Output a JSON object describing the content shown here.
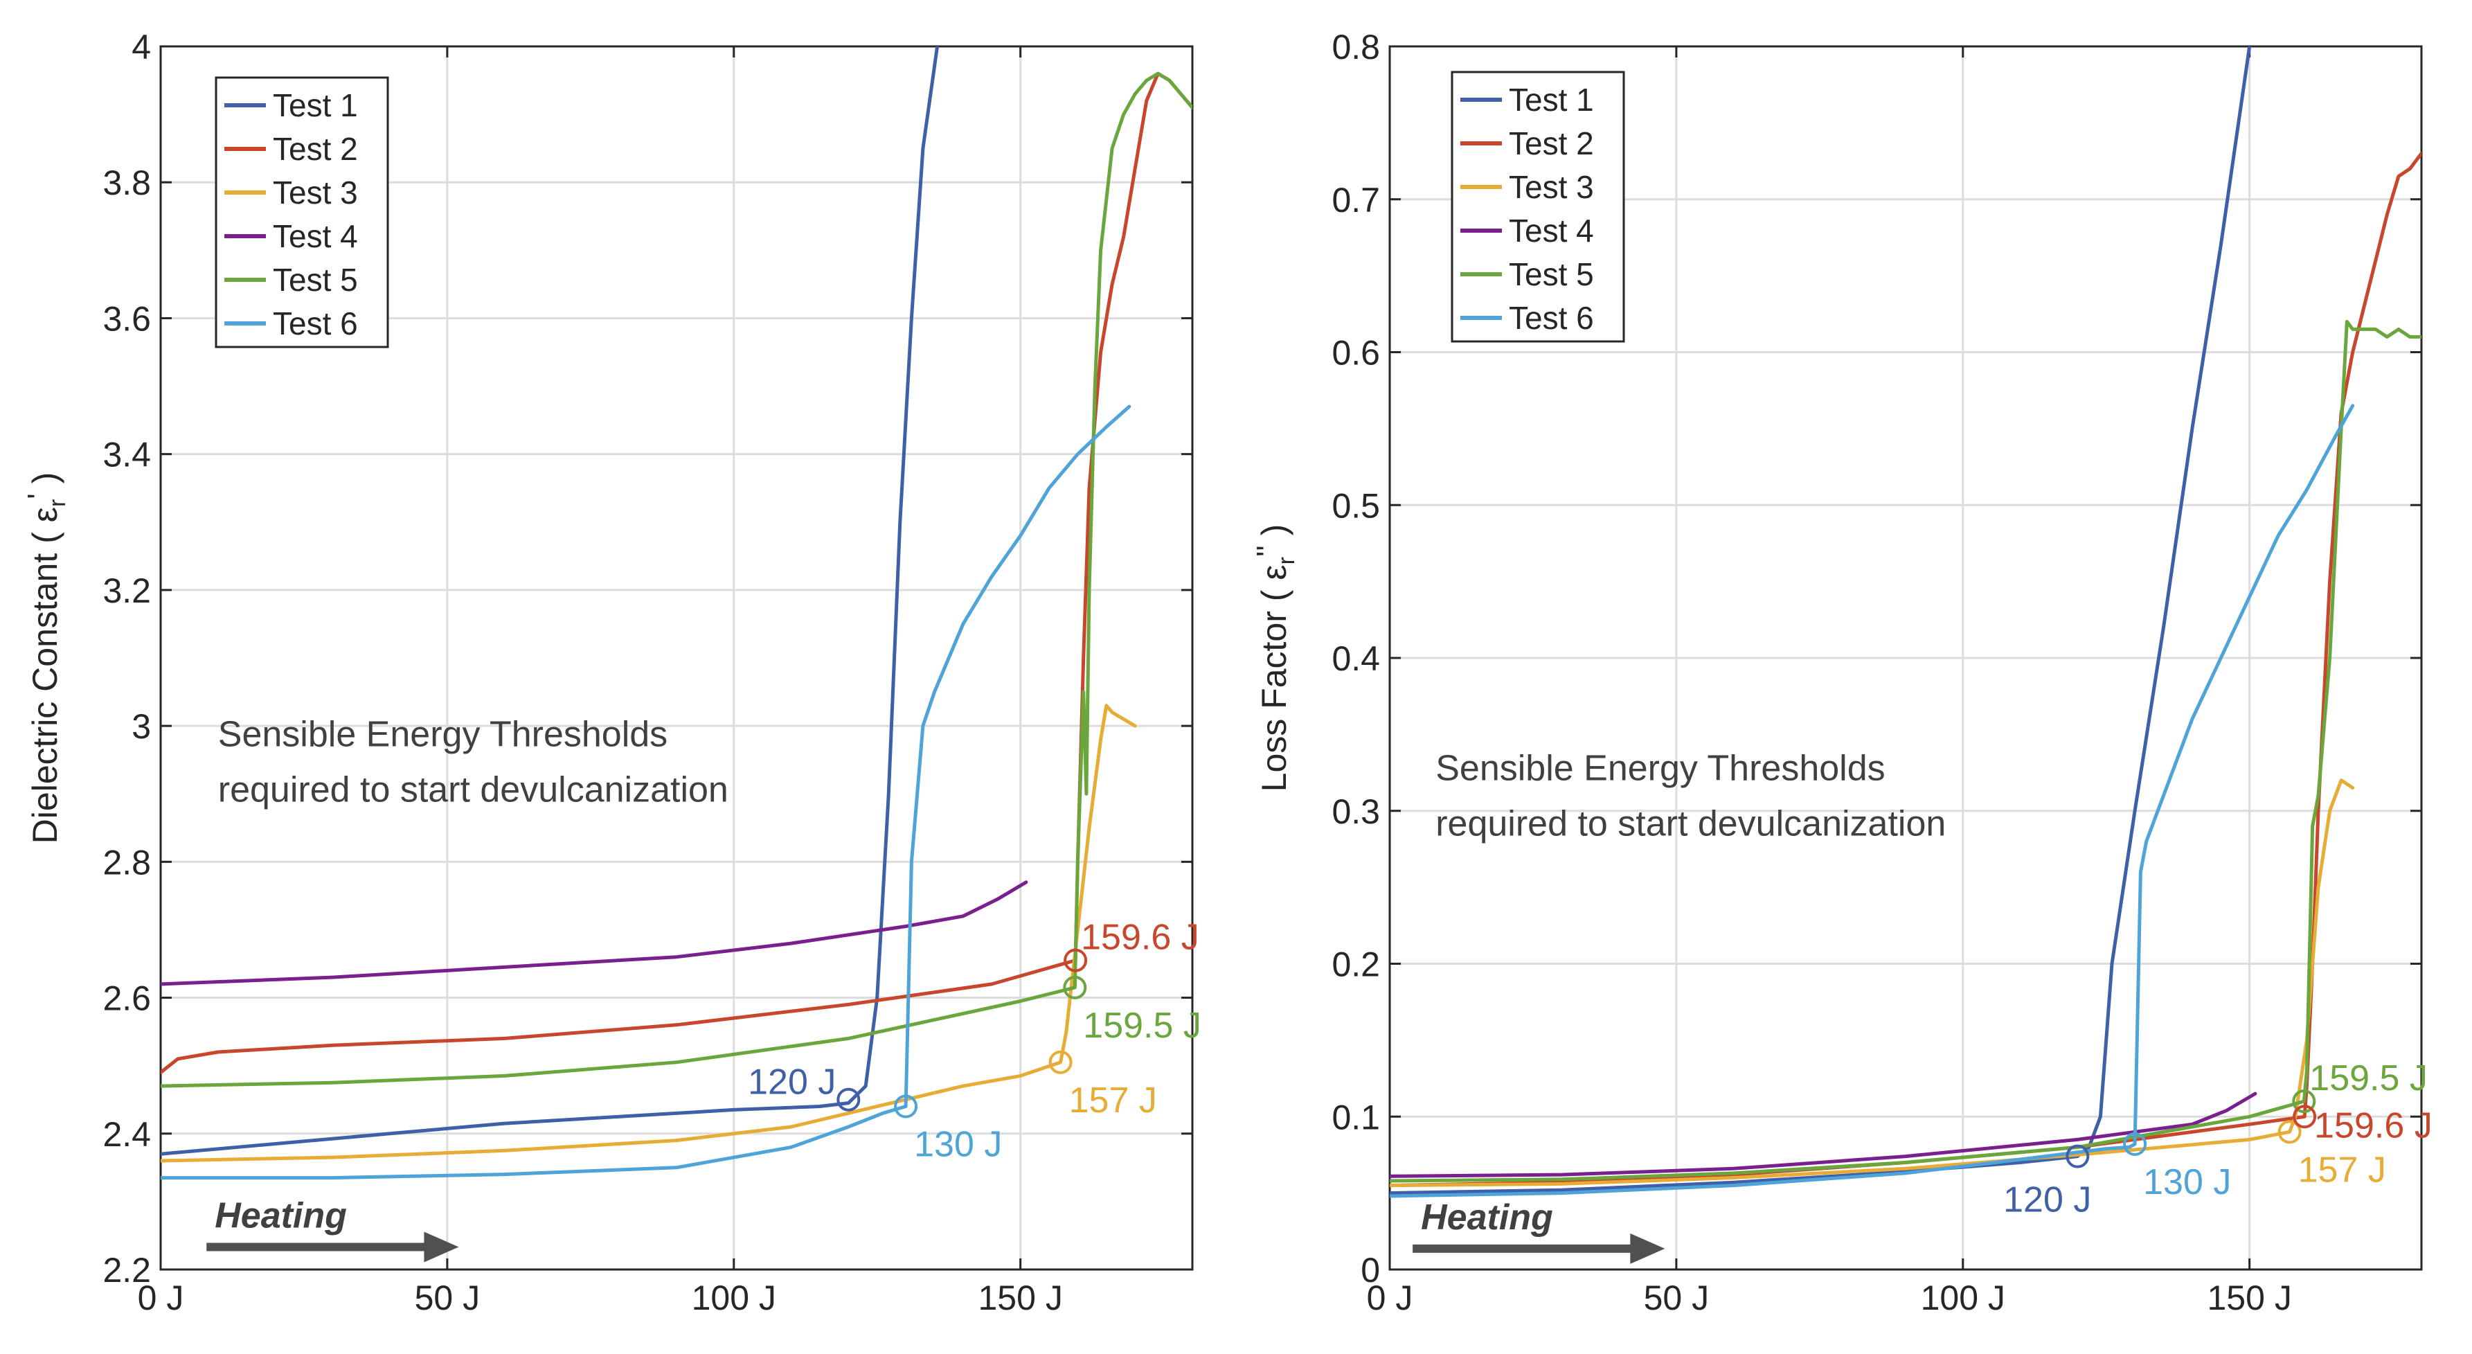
{
  "chart_data": [
    {
      "type": "line",
      "title": "",
      "xlabel": "",
      "ylabel": "Dielectric Constant",
      "ylabel_symbol": "ε",
      "ylabel_subscript": "r",
      "ylabel_prime": "'",
      "xlim": [
        0,
        180
      ],
      "ylim": [
        2.2,
        4.0
      ],
      "xticks": [
        0,
        50,
        100,
        150
      ],
      "xtick_labels": [
        "0 J",
        "50 J",
        "100 J",
        "150 J"
      ],
      "yticks": [
        2.2,
        2.4,
        2.6,
        2.8,
        3.0,
        3.2,
        3.4,
        3.6,
        3.8,
        4.0
      ],
      "ytick_labels": [
        "2.2",
        "2.4",
        "2.6",
        "2.8",
        "3",
        "3.2",
        "3.4",
        "3.6",
        "3.8",
        "4"
      ],
      "grid": true,
      "legend_position": "top-left",
      "series": [
        {
          "name": "Test 1",
          "color": "#3f5fa9",
          "x": [
            0,
            20,
            40,
            60,
            80,
            100,
            115,
            120,
            123,
            125,
            127,
            129,
            131,
            133,
            135.5
          ],
          "y": [
            2.37,
            2.385,
            2.4,
            2.415,
            2.425,
            2.435,
            2.44,
            2.445,
            2.47,
            2.6,
            2.9,
            3.3,
            3.6,
            3.85,
            4.0
          ]
        },
        {
          "name": "Test 2",
          "color": "#c8462b",
          "x": [
            0,
            3,
            10,
            30,
            60,
            90,
            120,
            145,
            159.6,
            160,
            161,
            162,
            164,
            166,
            168,
            170,
            172,
            174,
            176,
            178,
            180
          ],
          "y": [
            2.49,
            2.51,
            2.52,
            2.53,
            2.54,
            2.56,
            2.59,
            2.62,
            2.655,
            2.8,
            3.1,
            3.35,
            3.55,
            3.65,
            3.72,
            3.82,
            3.92,
            3.96,
            3.95,
            3.93,
            3.91
          ]
        },
        {
          "name": "Test 3",
          "color": "#e6ac36",
          "x": [
            0,
            30,
            60,
            90,
            110,
            120,
            130,
            140,
            150,
            157,
            158,
            160,
            162,
            164,
            165,
            166,
            168,
            170
          ],
          "y": [
            2.36,
            2.365,
            2.375,
            2.39,
            2.41,
            2.43,
            2.45,
            2.47,
            2.485,
            2.505,
            2.55,
            2.7,
            2.85,
            2.98,
            3.03,
            3.02,
            3.01,
            3.0
          ]
        },
        {
          "name": "Test 4",
          "color": "#7a1f8e",
          "x": [
            0,
            30,
            60,
            90,
            110,
            130,
            140,
            146,
            151
          ],
          "y": [
            2.62,
            2.63,
            2.645,
            2.66,
            2.68,
            2.705,
            2.72,
            2.745,
            2.77
          ]
        },
        {
          "name": "Test 5",
          "color": "#6aa63c",
          "x": [
            0,
            30,
            60,
            90,
            120,
            150,
            159.5,
            160,
            161,
            161.5,
            162,
            163,
            164,
            166,
            168,
            170,
            172,
            174,
            176,
            178,
            180
          ],
          "y": [
            2.47,
            2.475,
            2.485,
            2.505,
            2.54,
            2.595,
            2.615,
            2.8,
            3.05,
            2.9,
            3.2,
            3.5,
            3.7,
            3.85,
            3.9,
            3.93,
            3.95,
            3.96,
            3.95,
            3.93,
            3.91
          ]
        },
        {
          "name": "Test 6",
          "color": "#4ea4d8",
          "x": [
            0,
            30,
            60,
            90,
            110,
            120,
            126,
            130,
            131,
            133,
            135,
            140,
            145,
            150,
            155,
            160,
            165,
            169
          ],
          "y": [
            2.335,
            2.335,
            2.34,
            2.35,
            2.38,
            2.41,
            2.43,
            2.44,
            2.8,
            3.0,
            3.05,
            3.15,
            3.22,
            3.28,
            3.35,
            3.4,
            3.44,
            3.47
          ]
        }
      ],
      "threshold_markers": [
        {
          "label": "120 J",
          "series": "Test 1",
          "x": 120,
          "y": 2.45,
          "color": "#3f5fa9",
          "label_side": "left-above"
        },
        {
          "label": "130 J",
          "series": "Test 6",
          "x": 130,
          "y": 2.44,
          "color": "#4ea4d8",
          "label_side": "right-below"
        },
        {
          "label": "157 J",
          "series": "Test 3",
          "x": 157,
          "y": 2.505,
          "color": "#e6ac36",
          "label_side": "right-below"
        },
        {
          "label": "159.5 J",
          "series": "Test 5",
          "x": 159.5,
          "y": 2.615,
          "color": "#6aa63c",
          "label_side": "right-below"
        },
        {
          "label": "159.6 J",
          "series": "Test 2",
          "x": 159.6,
          "y": 2.655,
          "color": "#c8462b",
          "label_side": "right-above"
        }
      ],
      "annotation_lines": [
        "Sensible Energy Thresholds",
        "required to start devulcanization"
      ],
      "annotation_pos": {
        "x": 10,
        "y": 2.97
      },
      "arrow_label": "Heating",
      "arrow": {
        "x0": 8,
        "x1": 52,
        "y": 2.225
      }
    },
    {
      "type": "line",
      "title": "",
      "xlabel": "",
      "ylabel": "Loss Factor",
      "ylabel_symbol": "ε",
      "ylabel_subscript": "r",
      "ylabel_prime": "''",
      "xlim": [
        0,
        180
      ],
      "ylim": [
        0,
        0.8
      ],
      "xticks": [
        0,
        50,
        100,
        150
      ],
      "xtick_labels": [
        "0 J",
        "50 J",
        "100 J",
        "150 J"
      ],
      "yticks": [
        0,
        0.1,
        0.2,
        0.3,
        0.4,
        0.5,
        0.6,
        0.7,
        0.8
      ],
      "ytick_labels": [
        "0",
        "0.1",
        "0.2",
        "0.3",
        "0.4",
        "0.5",
        "0.6",
        "0.7",
        "0.8"
      ],
      "grid": true,
      "legend_position": "top-left",
      "series": [
        {
          "name": "Test 1",
          "color": "#3f5fa9",
          "x": [
            0,
            30,
            60,
            90,
            110,
            120,
            122,
            124,
            126,
            130,
            135,
            140,
            145,
            150
          ],
          "y": [
            0.05,
            0.052,
            0.057,
            0.064,
            0.07,
            0.074,
            0.08,
            0.1,
            0.2,
            0.3,
            0.42,
            0.55,
            0.67,
            0.8
          ]
        },
        {
          "name": "Test 2",
          "color": "#c8462b",
          "x": [
            0,
            30,
            60,
            90,
            120,
            150,
            159.6,
            160,
            161,
            162,
            164,
            166,
            168,
            170,
            172,
            174,
            176,
            178,
            180
          ],
          "y": [
            0.055,
            0.057,
            0.062,
            0.07,
            0.08,
            0.095,
            0.1,
            0.12,
            0.2,
            0.3,
            0.45,
            0.56,
            0.6,
            0.63,
            0.66,
            0.69,
            0.715,
            0.72,
            0.73
          ]
        },
        {
          "name": "Test 3",
          "color": "#e6ac36",
          "x": [
            0,
            30,
            60,
            90,
            120,
            150,
            157,
            158,
            160,
            162,
            164,
            166,
            168
          ],
          "y": [
            0.055,
            0.056,
            0.06,
            0.066,
            0.075,
            0.085,
            0.09,
            0.1,
            0.15,
            0.25,
            0.3,
            0.32,
            0.315
          ]
        },
        {
          "name": "Test 4",
          "color": "#7a1f8e",
          "x": [
            0,
            30,
            60,
            90,
            120,
            140,
            146,
            151
          ],
          "y": [
            0.061,
            0.062,
            0.066,
            0.074,
            0.085,
            0.095,
            0.104,
            0.115
          ]
        },
        {
          "name": "Test 5",
          "color": "#6aa63c",
          "x": [
            0,
            30,
            60,
            90,
            120,
            150,
            159.5,
            160,
            161,
            162,
            164,
            166,
            167,
            168,
            170,
            172,
            174,
            176,
            178,
            180
          ],
          "y": [
            0.058,
            0.059,
            0.063,
            0.07,
            0.08,
            0.1,
            0.11,
            0.13,
            0.29,
            0.31,
            0.4,
            0.55,
            0.62,
            0.615,
            0.615,
            0.615,
            0.61,
            0.615,
            0.61,
            0.61
          ]
        },
        {
          "name": "Test 6",
          "color": "#4ea4d8",
          "x": [
            0,
            30,
            60,
            90,
            110,
            125,
            129,
            130,
            131,
            132,
            135,
            140,
            145,
            150,
            155,
            160,
            165,
            168
          ],
          "y": [
            0.048,
            0.05,
            0.055,
            0.063,
            0.072,
            0.079,
            0.08,
            0.082,
            0.26,
            0.28,
            0.31,
            0.36,
            0.4,
            0.44,
            0.48,
            0.51,
            0.545,
            0.565
          ]
        }
      ],
      "threshold_markers": [
        {
          "label": "120 J",
          "series": "Test 1",
          "x": 120,
          "y": 0.074,
          "color": "#3f5fa9",
          "label_side": "left-below"
        },
        {
          "label": "130 J",
          "series": "Test 6",
          "x": 130,
          "y": 0.082,
          "color": "#4ea4d8",
          "label_side": "right-below"
        },
        {
          "label": "157 J",
          "series": "Test 3",
          "x": 157,
          "y": 0.09,
          "color": "#e6ac36",
          "label_side": "right-below"
        },
        {
          "label": "159.5 J",
          "series": "Test 5",
          "x": 159.5,
          "y": 0.11,
          "color": "#6aa63c",
          "label_side": "right-above"
        },
        {
          "label": "159.6 J",
          "series": "Test 2",
          "x": 159.6,
          "y": 0.1,
          "color": "#c8462b",
          "label_side": "right"
        }
      ],
      "annotation_lines": [
        "Sensible Energy Thresholds",
        "required to start devulcanization"
      ],
      "annotation_pos": {
        "x": 8,
        "y": 0.32
      },
      "arrow_label": "Heating",
      "arrow": {
        "x0": 4,
        "x1": 48,
        "y": 0.01
      }
    }
  ]
}
